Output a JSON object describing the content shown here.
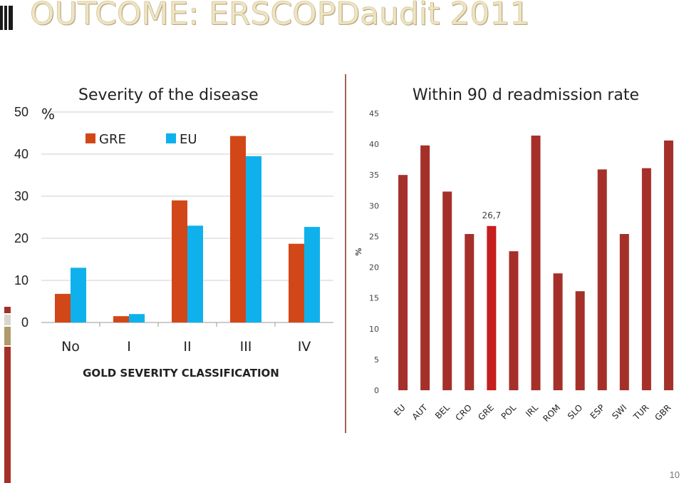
{
  "slide": {
    "title": "OUTCOME: ERSCOPDaudit 2011",
    "page_number": "10"
  },
  "colors": {
    "gre_left": "#d24718",
    "eu_left": "#0fb1ec",
    "bar_right": "#a5302a",
    "highlight_right": "#c61d1d",
    "divider": "#8b2b21"
  },
  "chart_data": [
    {
      "type": "bar",
      "title": "Severity of the disease",
      "ylabel": "%",
      "xlabel": "GOLD SEVERITY CLASSIFICATION",
      "categories": [
        "No",
        "I",
        "II",
        "III",
        "IV"
      ],
      "series": [
        {
          "name": "GRE",
          "values": [
            6.8,
            1.5,
            29,
            44.3,
            18.7
          ]
        },
        {
          "name": "EU",
          "values": [
            13,
            2,
            23,
            39.5,
            22.7
          ]
        }
      ],
      "ylim": [
        0,
        50
      ],
      "yticks": [
        "0",
        "10",
        "20",
        "30",
        "40",
        "50"
      ],
      "grid": true,
      "legend": "top-left"
    },
    {
      "type": "bar",
      "title": "Within 90 d readmission rate",
      "ylabel": "%",
      "categories": [
        "EU",
        "AUT",
        "BEL",
        "CRO",
        "GRE",
        "POL",
        "IRL",
        "ROM",
        "SLO",
        "ESP",
        "SWI",
        "TUR",
        "GBR"
      ],
      "values": [
        35,
        39.8,
        32.3,
        25.4,
        26.7,
        22.6,
        41.4,
        19,
        16.1,
        35.9,
        25.4,
        36.1,
        40.6
      ],
      "highlight": "GRE",
      "data_labels": {
        "GRE": "26,7"
      },
      "ylim": [
        0,
        45
      ],
      "yticks": [
        "0",
        "5",
        "10",
        "15",
        "20",
        "25",
        "30",
        "35",
        "40",
        "45"
      ],
      "grid": false
    }
  ]
}
